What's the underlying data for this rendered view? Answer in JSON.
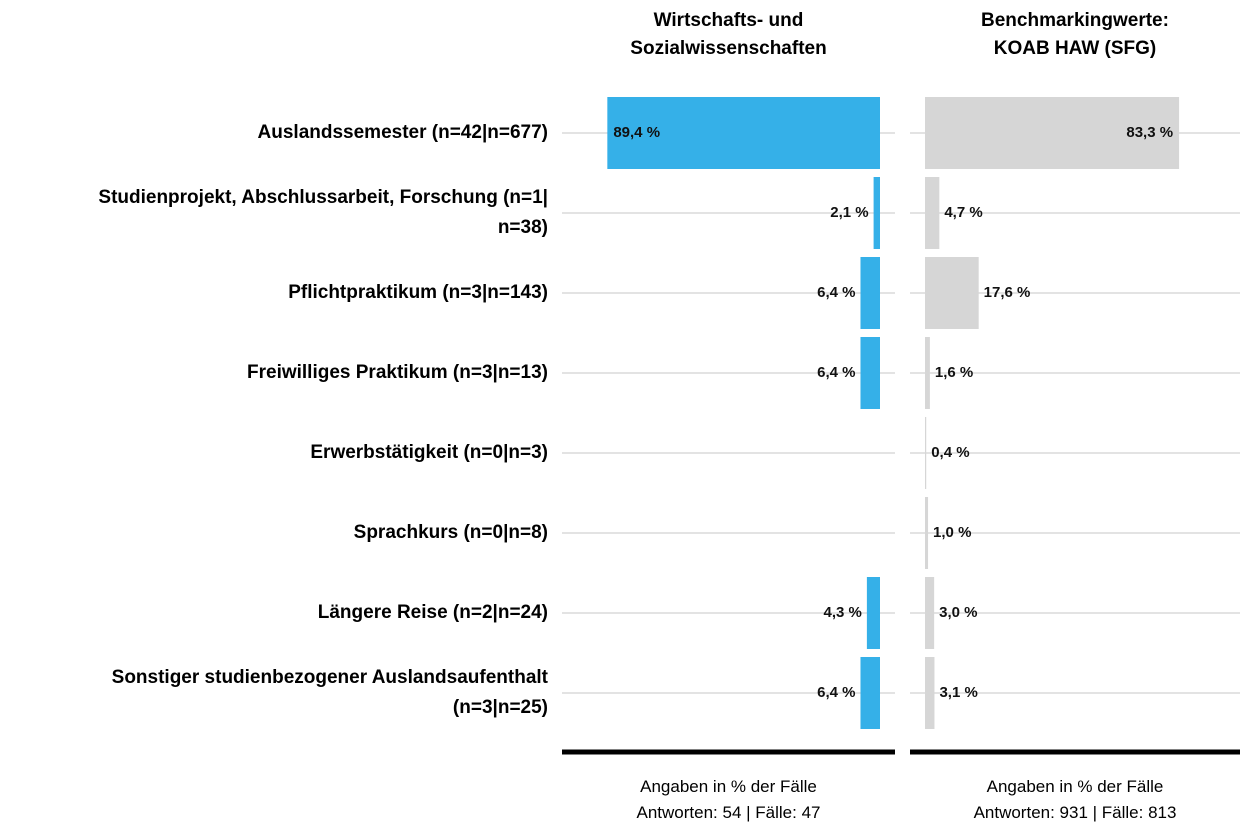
{
  "chart_data": [
    {
      "type": "bar",
      "orientation": "horizontal",
      "reversed": true,
      "title": "Wirtschafts- und\nSozialwissenschaften",
      "categories": [
        "Auslandssemester (n=42|n=677)",
        "Studienprojekt, Abschlussarbeit, Forschung (n=1|\nn=38)",
        "Pflichtpraktikum (n=3|n=143)",
        "Freiwilliges Praktikum (n=3|n=13)",
        "Erwerbstätigkeit (n=0|n=3)",
        "Sprachkurs (n=0|n=8)",
        "Längere Reise (n=2|n=24)",
        "Sonstiger studienbezogener Auslandsaufenthalt\n(n=3|n=25)"
      ],
      "values": [
        89.4,
        2.1,
        6.4,
        6.4,
        0,
        0,
        4.3,
        6.4
      ],
      "value_labels": [
        "89,4 %",
        "2,1 %",
        "6,4 %",
        "6,4 %",
        null,
        null,
        "4,3 %",
        "6,4 %"
      ],
      "color": "#35b0e8",
      "xlim": [
        0,
        100
      ],
      "grid": true,
      "notes": [
        "Angaben in % der Fälle",
        "Antworten: 54 | Fälle: 47"
      ]
    },
    {
      "type": "bar",
      "orientation": "horizontal",
      "reversed": false,
      "title": "Benchmarkingwerte:\nKOAB HAW (SFG)",
      "values": [
        83.3,
        4.7,
        17.6,
        1.6,
        0.4,
        1.0,
        3.0,
        3.1
      ],
      "value_labels": [
        "83,3 %",
        "4,7 %",
        "17,6 %",
        "1,6 %",
        "0,4 %",
        "1,0 %",
        "3,0 %",
        "3,1 %"
      ],
      "color": "#d6d6d6",
      "xlim": [
        0,
        100
      ],
      "grid": true,
      "notes": [
        "Angaben in % der Fälle",
        "Antworten: 931 | Fälle: 813"
      ]
    }
  ]
}
